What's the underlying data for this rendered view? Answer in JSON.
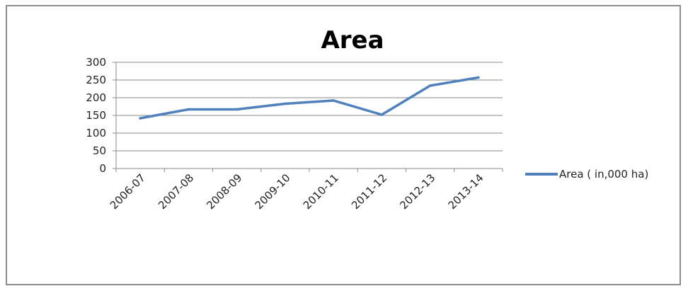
{
  "chart_data": {
    "type": "line",
    "title": "Area",
    "categories": [
      "2006-07",
      "2007-08",
      "2008-09",
      "2009-10",
      "2010-11",
      "2011-12",
      "2012-13",
      "2013-14"
    ],
    "series": [
      {
        "name": "Area ( in,000 ha)",
        "values": [
          142,
          167,
          167,
          183,
          192,
          152,
          234,
          257
        ],
        "color": "#4f81bd"
      }
    ],
    "yticks": [
      "0",
      "50",
      "100",
      "150",
      "200",
      "250",
      "300"
    ],
    "ylim": [
      0,
      300
    ],
    "grid": true,
    "legend_position": "right"
  }
}
